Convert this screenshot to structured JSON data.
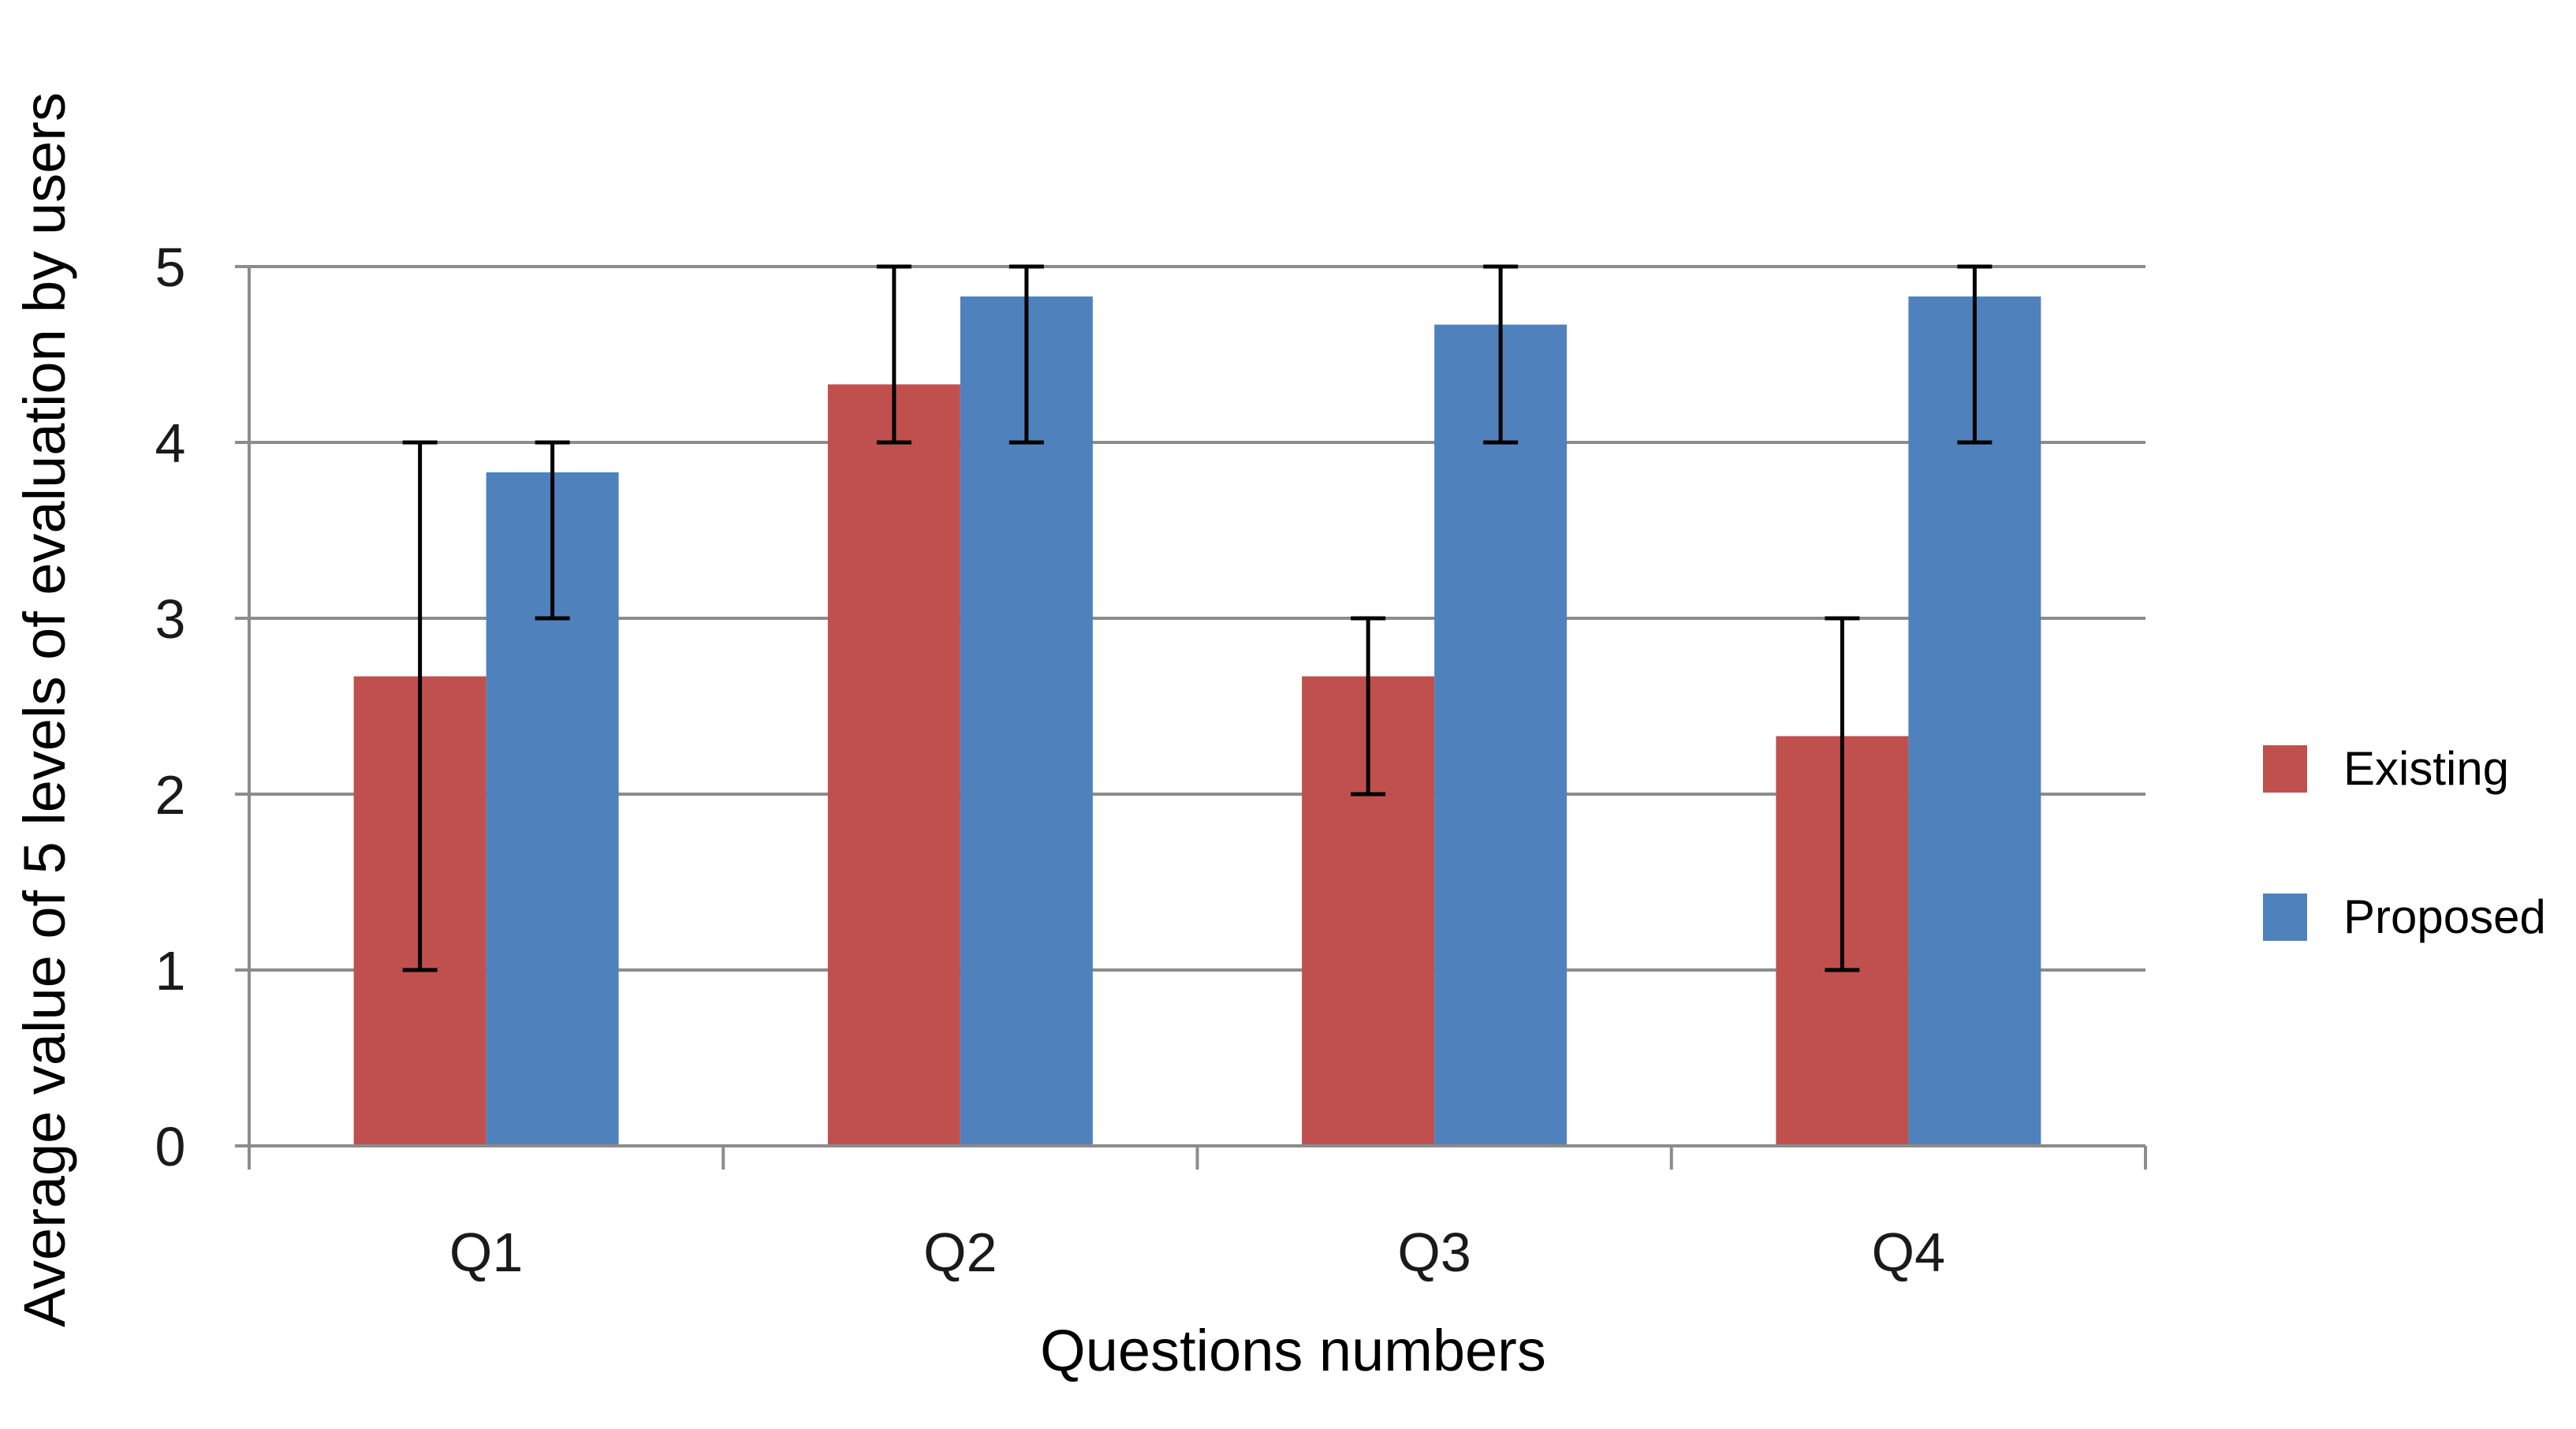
{
  "chart_data": {
    "type": "bar",
    "categories": [
      "Q1",
      "Q2",
      "Q3",
      "Q4"
    ],
    "series": [
      {
        "name": "Existing",
        "color": "#c0504d",
        "values": [
          2.67,
          4.33,
          2.67,
          2.33
        ],
        "error_low": [
          1,
          4,
          2,
          1
        ],
        "error_high": [
          4,
          5,
          3,
          3
        ]
      },
      {
        "name": "Proposed",
        "color": "#4f81bd",
        "values": [
          3.83,
          4.83,
          4.67,
          4.83
        ],
        "error_low": [
          3,
          4,
          4,
          4
        ],
        "error_high": [
          4,
          5,
          5,
          5
        ]
      }
    ],
    "xlabel": "Questions numbers",
    "ylabel": "Average value of 5 levels of evaluation by users",
    "ylim": [
      0,
      5
    ],
    "yticks": [
      0,
      1,
      2,
      3,
      4,
      5
    ],
    "grid": true,
    "legend_position": "right"
  }
}
